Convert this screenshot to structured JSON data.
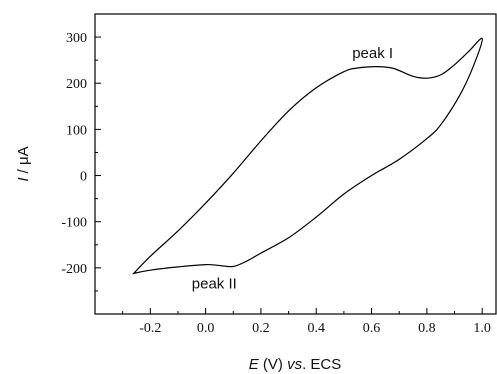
{
  "chart_data": {
    "type": "line",
    "title": "",
    "xlabel_parts": [
      "E",
      " (V) ",
      "vs",
      ". ECS"
    ],
    "ylabel_parts": [
      "I",
      " / μA"
    ],
    "xlim": [
      -0.4,
      1.05
    ],
    "ylim": [
      -300,
      350
    ],
    "xticks": [
      -0.2,
      0.0,
      0.2,
      0.4,
      0.6,
      0.8,
      1.0
    ],
    "xtick_labels": [
      "-0.2",
      "0.0",
      "0.2",
      "0.4",
      "0.6",
      "0.8",
      "1.0"
    ],
    "yticks": [
      -200,
      -100,
      0,
      100,
      200,
      300
    ],
    "ytick_labels": [
      "-200",
      "-100",
      "0",
      "100",
      "200",
      "300"
    ],
    "grid": false,
    "series": [
      {
        "x": [
          -0.26,
          -0.2,
          -0.1,
          0.0,
          0.1,
          0.2,
          0.3,
          0.4,
          0.5,
          0.55,
          0.62,
          0.68,
          0.75,
          0.8,
          0.85,
          0.9,
          0.95,
          1.0,
          0.97,
          0.92,
          0.85,
          0.8,
          0.7,
          0.6,
          0.5,
          0.4,
          0.3,
          0.2,
          0.15,
          0.1,
          0.05,
          0.0,
          -0.1,
          -0.2,
          -0.26
        ],
        "y": [
          -212,
          -175,
          -120,
          -60,
          5,
          75,
          140,
          190,
          225,
          233,
          236,
          232,
          215,
          211,
          218,
          240,
          268,
          297,
          240,
          175,
          110,
          80,
          35,
          0,
          -40,
          -90,
          -135,
          -168,
          -185,
          -197,
          -195,
          -193,
          -198,
          -205,
          -212
        ]
      }
    ],
    "annotations": [
      {
        "text": "peak I",
        "x": 0.53,
        "y": 255
      },
      {
        "text": "peak II",
        "x": -0.05,
        "y": -245
      }
    ]
  }
}
